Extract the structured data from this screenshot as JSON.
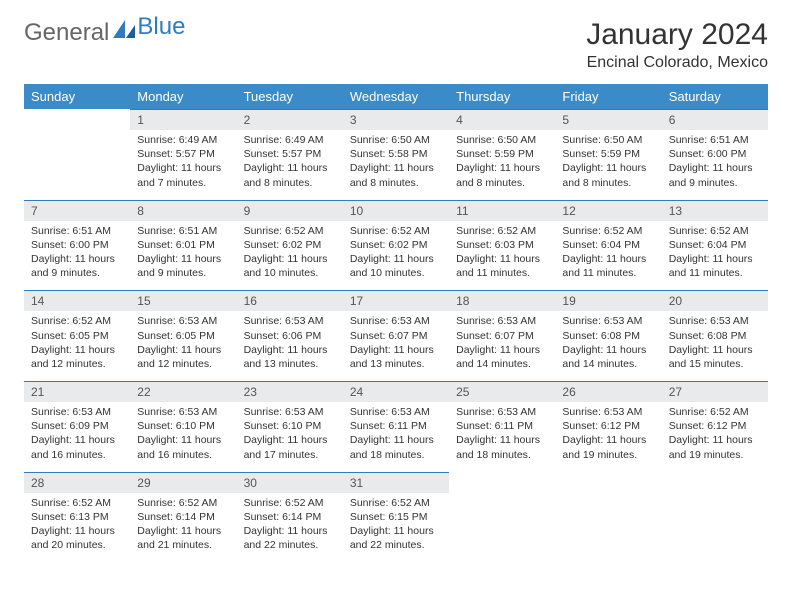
{
  "logo": {
    "text_general": "General",
    "text_blue": "Blue"
  },
  "title": "January 2024",
  "location": "Encinal Colorado, Mexico",
  "colors": {
    "header_bg": "#3b8bc9",
    "header_fg": "#ffffff",
    "daynum_bg": "#e9eaec",
    "rule": "#2e7cc2",
    "text": "#333333",
    "logo_blue": "#2e7cc2",
    "logo_gray": "#666666",
    "page_bg": "#ffffff"
  },
  "typography": {
    "title_fontsize": 30,
    "location_fontsize": 16,
    "header_fontsize": 13,
    "daynum_fontsize": 12,
    "body_fontsize": 10.5,
    "font_family": "Arial"
  },
  "weekdays": [
    "Sunday",
    "Monday",
    "Tuesday",
    "Wednesday",
    "Thursday",
    "Friday",
    "Saturday"
  ],
  "weeks": [
    [
      null,
      {
        "n": "1",
        "sunrise": "6:49 AM",
        "sunset": "5:57 PM",
        "daylight": "11 hours and 7 minutes."
      },
      {
        "n": "2",
        "sunrise": "6:49 AM",
        "sunset": "5:57 PM",
        "daylight": "11 hours and 8 minutes."
      },
      {
        "n": "3",
        "sunrise": "6:50 AM",
        "sunset": "5:58 PM",
        "daylight": "11 hours and 8 minutes."
      },
      {
        "n": "4",
        "sunrise": "6:50 AM",
        "sunset": "5:59 PM",
        "daylight": "11 hours and 8 minutes."
      },
      {
        "n": "5",
        "sunrise": "6:50 AM",
        "sunset": "5:59 PM",
        "daylight": "11 hours and 8 minutes."
      },
      {
        "n": "6",
        "sunrise": "6:51 AM",
        "sunset": "6:00 PM",
        "daylight": "11 hours and 9 minutes."
      }
    ],
    [
      {
        "n": "7",
        "sunrise": "6:51 AM",
        "sunset": "6:00 PM",
        "daylight": "11 hours and 9 minutes."
      },
      {
        "n": "8",
        "sunrise": "6:51 AM",
        "sunset": "6:01 PM",
        "daylight": "11 hours and 9 minutes."
      },
      {
        "n": "9",
        "sunrise": "6:52 AM",
        "sunset": "6:02 PM",
        "daylight": "11 hours and 10 minutes."
      },
      {
        "n": "10",
        "sunrise": "6:52 AM",
        "sunset": "6:02 PM",
        "daylight": "11 hours and 10 minutes."
      },
      {
        "n": "11",
        "sunrise": "6:52 AM",
        "sunset": "6:03 PM",
        "daylight": "11 hours and 11 minutes."
      },
      {
        "n": "12",
        "sunrise": "6:52 AM",
        "sunset": "6:04 PM",
        "daylight": "11 hours and 11 minutes."
      },
      {
        "n": "13",
        "sunrise": "6:52 AM",
        "sunset": "6:04 PM",
        "daylight": "11 hours and 11 minutes."
      }
    ],
    [
      {
        "n": "14",
        "sunrise": "6:52 AM",
        "sunset": "6:05 PM",
        "daylight": "11 hours and 12 minutes."
      },
      {
        "n": "15",
        "sunrise": "6:53 AM",
        "sunset": "6:05 PM",
        "daylight": "11 hours and 12 minutes."
      },
      {
        "n": "16",
        "sunrise": "6:53 AM",
        "sunset": "6:06 PM",
        "daylight": "11 hours and 13 minutes."
      },
      {
        "n": "17",
        "sunrise": "6:53 AM",
        "sunset": "6:07 PM",
        "daylight": "11 hours and 13 minutes."
      },
      {
        "n": "18",
        "sunrise": "6:53 AM",
        "sunset": "6:07 PM",
        "daylight": "11 hours and 14 minutes."
      },
      {
        "n": "19",
        "sunrise": "6:53 AM",
        "sunset": "6:08 PM",
        "daylight": "11 hours and 14 minutes."
      },
      {
        "n": "20",
        "sunrise": "6:53 AM",
        "sunset": "6:08 PM",
        "daylight": "11 hours and 15 minutes."
      }
    ],
    [
      {
        "n": "21",
        "sunrise": "6:53 AM",
        "sunset": "6:09 PM",
        "daylight": "11 hours and 16 minutes."
      },
      {
        "n": "22",
        "sunrise": "6:53 AM",
        "sunset": "6:10 PM",
        "daylight": "11 hours and 16 minutes."
      },
      {
        "n": "23",
        "sunrise": "6:53 AM",
        "sunset": "6:10 PM",
        "daylight": "11 hours and 17 minutes."
      },
      {
        "n": "24",
        "sunrise": "6:53 AM",
        "sunset": "6:11 PM",
        "daylight": "11 hours and 18 minutes."
      },
      {
        "n": "25",
        "sunrise": "6:53 AM",
        "sunset": "6:11 PM",
        "daylight": "11 hours and 18 minutes."
      },
      {
        "n": "26",
        "sunrise": "6:53 AM",
        "sunset": "6:12 PM",
        "daylight": "11 hours and 19 minutes."
      },
      {
        "n": "27",
        "sunrise": "6:52 AM",
        "sunset": "6:12 PM",
        "daylight": "11 hours and 19 minutes."
      }
    ],
    [
      {
        "n": "28",
        "sunrise": "6:52 AM",
        "sunset": "6:13 PM",
        "daylight": "11 hours and 20 minutes."
      },
      {
        "n": "29",
        "sunrise": "6:52 AM",
        "sunset": "6:14 PM",
        "daylight": "11 hours and 21 minutes."
      },
      {
        "n": "30",
        "sunrise": "6:52 AM",
        "sunset": "6:14 PM",
        "daylight": "11 hours and 22 minutes."
      },
      {
        "n": "31",
        "sunrise": "6:52 AM",
        "sunset": "6:15 PM",
        "daylight": "11 hours and 22 minutes."
      },
      null,
      null,
      null
    ]
  ],
  "labels": {
    "sunrise_prefix": "Sunrise: ",
    "sunset_prefix": "Sunset: ",
    "daylight_prefix": "Daylight: "
  }
}
